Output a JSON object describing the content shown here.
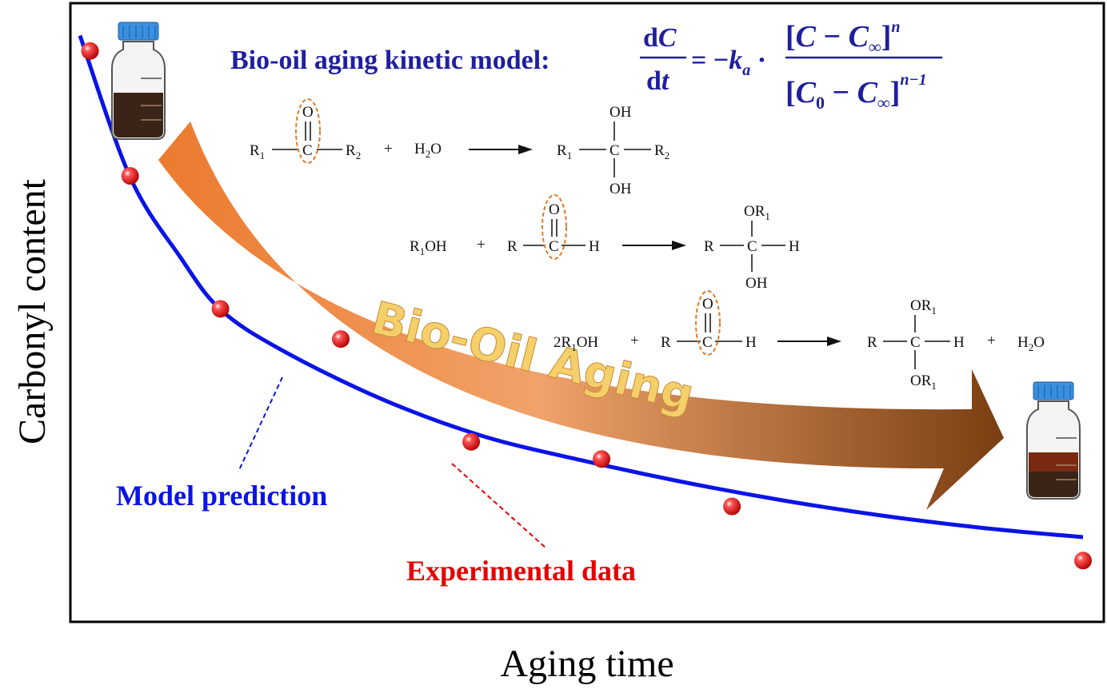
{
  "chart_data": {
    "type": "scatter",
    "xlabel": "Aging time",
    "ylabel": "Carbonyl content",
    "series": [
      {
        "name": "Experimental data",
        "type": "scatter",
        "points": [
          [
            0.01,
            0.925
          ],
          [
            0.05,
            0.722
          ],
          [
            0.14,
            0.506
          ],
          [
            0.26,
            0.457
          ],
          [
            0.39,
            0.29
          ],
          [
            0.52,
            0.262
          ],
          [
            0.65,
            0.185
          ],
          [
            1.0,
            0.097
          ]
        ]
      },
      {
        "name": "Model prediction",
        "type": "line",
        "points": [
          [
            0.0,
            0.95
          ],
          [
            0.05,
            0.72
          ],
          [
            0.1,
            0.59
          ],
          [
            0.14,
            0.505
          ],
          [
            0.2,
            0.44
          ],
          [
            0.3,
            0.36
          ],
          [
            0.4,
            0.3
          ],
          [
            0.5,
            0.26
          ],
          [
            0.6,
            0.225
          ],
          [
            0.7,
            0.195
          ],
          [
            0.8,
            0.17
          ],
          [
            0.9,
            0.15
          ],
          [
            1.0,
            0.135
          ]
        ]
      }
    ],
    "grid": false
  },
  "annotations": {
    "model_prediction": "Model prediction",
    "experimental_data": "Experimental data",
    "banner": "Bio-Oil Aging",
    "formula_label": "Bio-oil aging kinetic model:"
  },
  "colors": {
    "model_line": "#0a14e6",
    "points": "#e60000",
    "formula": "#1f1f9e",
    "arrow_start": "#ec7a2e",
    "arrow_end": "#7a3e12",
    "banner_text": "#f5d06a",
    "oil_dark": "#3a2418",
    "oil_aged": "#7a2a10",
    "cap": "#3a8fe0"
  },
  "reactions": [
    {
      "left": [
        "R1 C(=O) R2",
        "+",
        "H2O"
      ],
      "right": "R1 C(OH)(OH) R2"
    },
    {
      "left": [
        "R1OH",
        "+",
        "R C(=O) H"
      ],
      "right": "R C(OR1)(OH) H"
    },
    {
      "left": [
        "2R1OH",
        "+",
        "R C(=O) H"
      ],
      "right": [
        "R C(OR1)(OR1) H",
        "+",
        "H2O"
      ]
    }
  ],
  "icons": [
    "fresh-bio-oil-bottle-icon",
    "aged-bio-oil-bottle-icon"
  ]
}
